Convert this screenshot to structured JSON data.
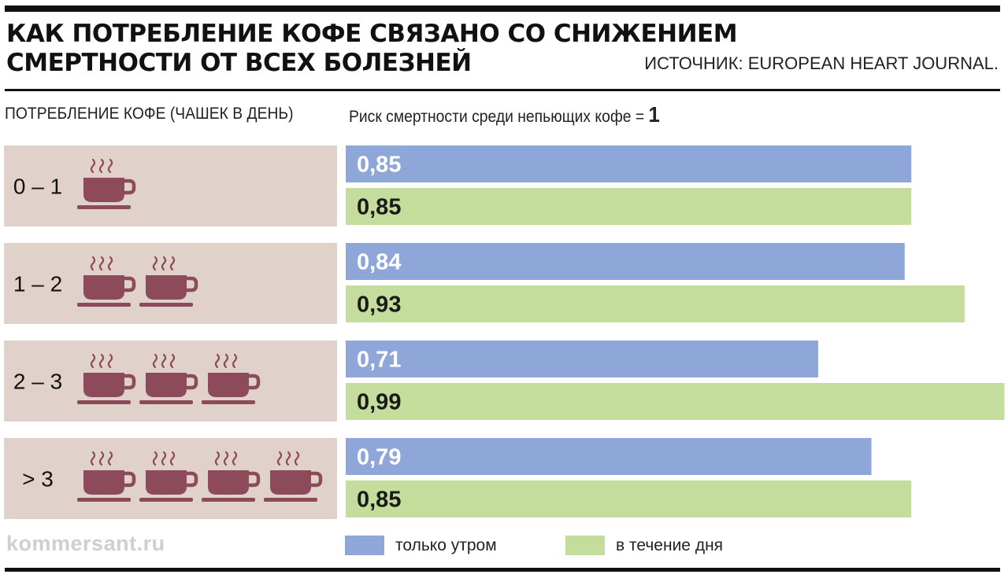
{
  "title_line1": "КАК ПОТРЕБЛЕНИЕ КОФЕ СВЯЗАНО СО СНИЖЕНИЕМ",
  "title_line2": "СМЕРТНОСТИ ОТ ВСЕХ БОЛЕЗНЕЙ",
  "source": "ИСТОЧНИК: EUROPEAN HEART JOURNAL.",
  "left_header": "ПОТРЕБЛЕНИЕ КОФЕ (ЧАШЕК В ДЕНЬ)",
  "right_header": "Риск смертности среди непьющих кофе = ",
  "right_header_value": "1",
  "brand": "kommersant.ru",
  "colors": {
    "morning": "#8ea6d8",
    "day": "#c4dc9c",
    "row_bg": "#e0d2ca",
    "cup": "#8c4a5a",
    "morning_label": "#ffffff",
    "day_label": "#1a1a1a"
  },
  "icons": [
    "coffee-cup-icon"
  ],
  "chart_data": {
    "type": "bar",
    "orientation": "horizontal",
    "categories": [
      "0 – 1",
      "1 – 2",
      "2 – 3",
      "> 3"
    ],
    "cups_shown": [
      1,
      2,
      3,
      4
    ],
    "value_labels": {
      "morning": [
        "0,85",
        "0,84",
        "0,71",
        "0,79"
      ],
      "day": [
        "0,85",
        "0,93",
        "0,99",
        "0,85"
      ]
    },
    "series": [
      {
        "name": "только утром",
        "values": [
          0.85,
          0.84,
          0.71,
          0.79
        ]
      },
      {
        "name": "в течение дня",
        "values": [
          0.85,
          0.93,
          0.99,
          0.85
        ]
      }
    ],
    "xlim": [
      0,
      1
    ],
    "legend": "bottom"
  }
}
